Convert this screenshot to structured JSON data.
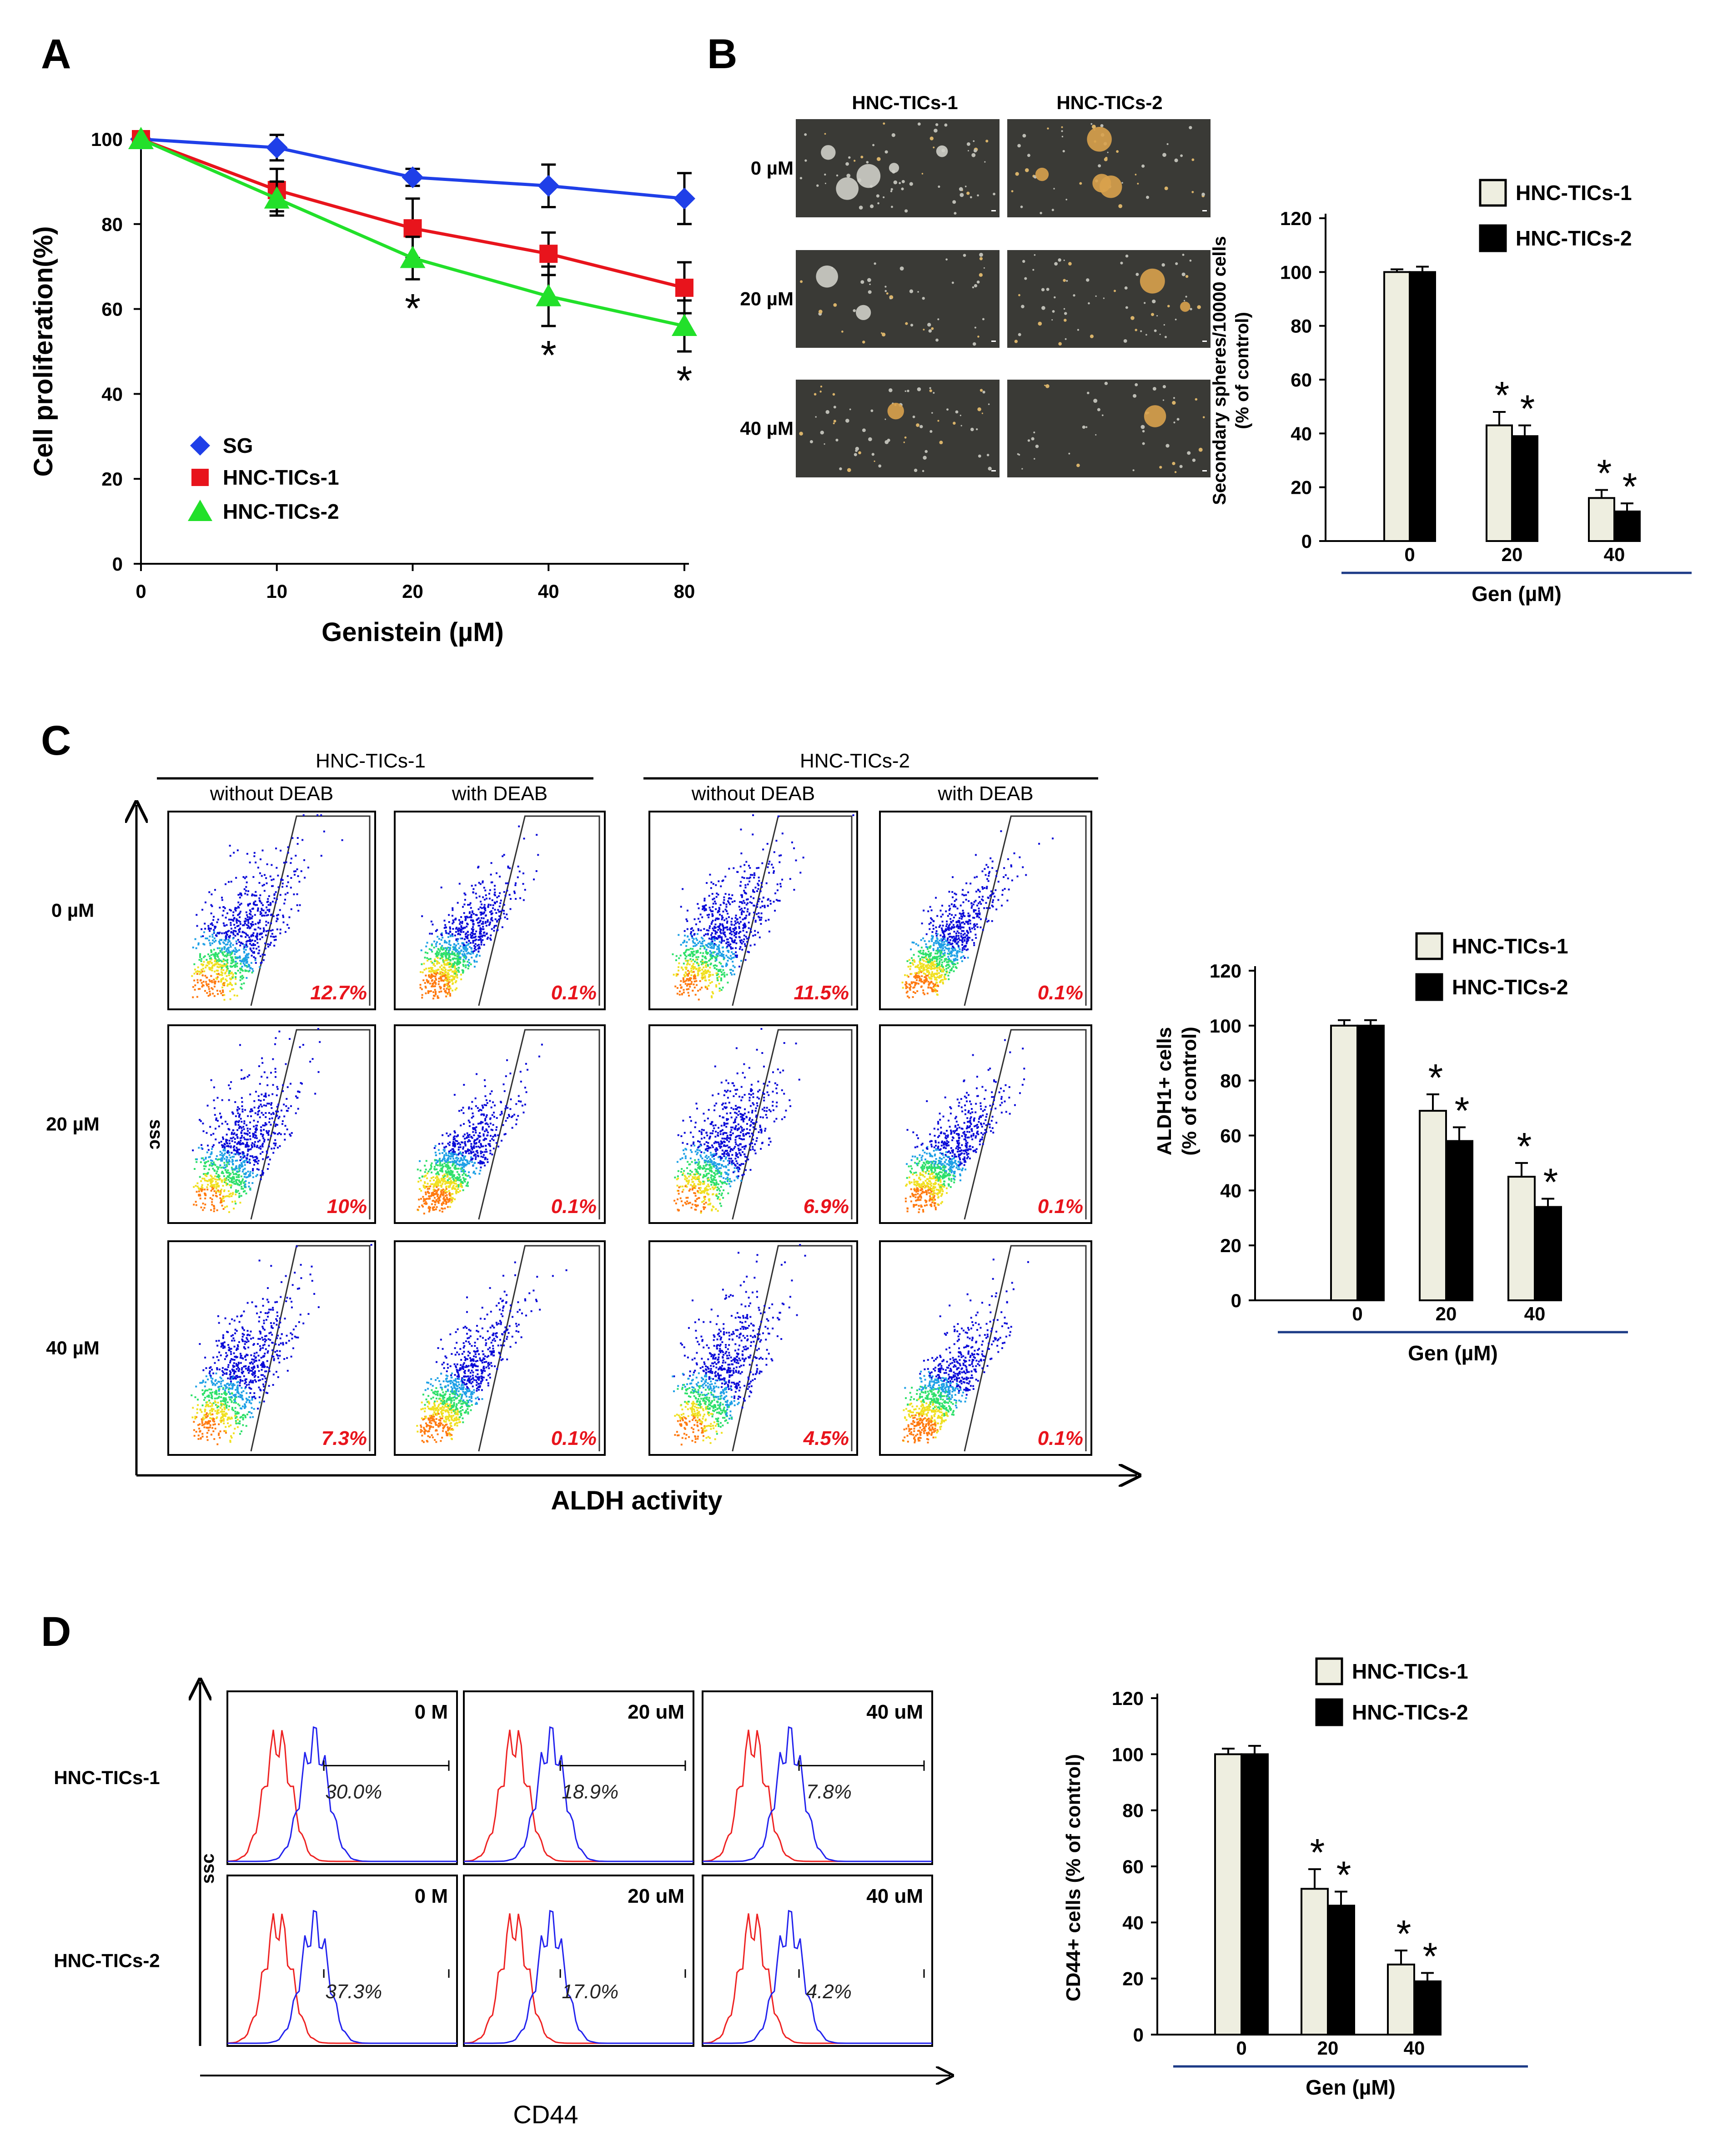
{
  "figure": {
    "panels": {
      "A": {
        "label": "A",
        "xlabel": "Genistein (µM)",
        "ylabel": "Cell proliferation(%)",
        "xticks": [
          "0",
          "10",
          "20",
          "40",
          "80"
        ],
        "yticks": [
          "0",
          "20",
          "40",
          "60",
          "80",
          "100"
        ],
        "legend": [
          "SG",
          "HNC-TICs-1",
          "HNC-TICs-2"
        ],
        "sig_marker": "*"
      },
      "B": {
        "label": "B",
        "col_headers": [
          "HNC-TICs-1",
          "HNC-TICs-2"
        ],
        "row_labels": [
          "0 µM",
          "20 µM",
          "40 µM"
        ],
        "ylabel": "Secondary spheres/10000 cells",
        "ylabel2": "(% of control)",
        "xlabel": "Gen (µM)",
        "xticks": [
          "0",
          "20",
          "40"
        ],
        "yticks": [
          "0",
          "20",
          "40",
          "60",
          "80",
          "100",
          "120"
        ],
        "legend": [
          "HNC-TICs-1",
          "HNC-TICs-2"
        ]
      },
      "C": {
        "label": "C",
        "group_headers": [
          "HNC-TICs-1",
          "HNC-TICs-2"
        ],
        "sub_headers": [
          "without DEAB",
          "with DEAB",
          "without DEAB",
          "with DEAB"
        ],
        "row_labels": [
          "0 µM",
          "20 µM",
          "40 µM"
        ],
        "y_axis_label": "ssc",
        "x_axis_label": "ALDH  activity",
        "percentages": [
          [
            "12.7%",
            "0.1%",
            "11.5%",
            "0.1%"
          ],
          [
            "10%",
            "0.1%",
            "6.9%",
            "0.1%"
          ],
          [
            "7.3%",
            "0.1%",
            "4.5%",
            "0.1%"
          ]
        ],
        "bar_ylabel": "ALDH1+ cells",
        "bar_ylabel2": "(% of control)",
        "bar_xlabel": "Gen (µM)",
        "bar_xticks": [
          "0",
          "20",
          "40"
        ],
        "bar_yticks": [
          "0",
          "20",
          "40",
          "60",
          "80",
          "100",
          "120"
        ],
        "legend": [
          "HNC-TICs-1",
          "HNC-TICs-2"
        ]
      },
      "D": {
        "label": "D",
        "row_labels": [
          "HNC-TICs-1",
          "HNC-TICs-2"
        ],
        "conc_labels": [
          "0 M",
          "20 uM",
          "40 uM"
        ],
        "percentages": [
          [
            "30.0%",
            "18.9%",
            "7.8%"
          ],
          [
            "37.3%",
            "17.0%",
            "4.2%"
          ]
        ],
        "y_axis_label": "ssc",
        "x_axis_label": "CD44",
        "bar_ylabel": "CD44+ cells (% of control)",
        "bar_xlabel": "Gen (µM)",
        "bar_xticks": [
          "0",
          "20",
          "40"
        ],
        "bar_yticks": [
          "0",
          "20",
          "40",
          "60",
          "80",
          "100",
          "120"
        ],
        "legend": [
          "HNC-TICs-1",
          "HNC-TICs-2"
        ]
      }
    },
    "colors": {
      "sg": "#1f3fe8",
      "tic1_line": "#e8141c",
      "tic2_line": "#22e02a",
      "bar_light": "#eeeee0",
      "bar_dark": "#000000",
      "axis_rule": "#1b3a86",
      "pct_red": "#e8141c",
      "hist_red": "#ee2222",
      "hist_blue": "#2222ee"
    }
  },
  "chart_data": [
    {
      "type": "line",
      "title": "A",
      "xlabel": "Genistein (µM)",
      "ylabel": "Cell proliferation(%)",
      "categories": [
        "0",
        "10",
        "20",
        "40",
        "80"
      ],
      "ylim": [
        0,
        100
      ],
      "series": [
        {
          "name": "SG",
          "values": [
            100,
            98,
            91,
            89,
            86
          ],
          "errors": [
            0,
            3,
            2,
            5,
            6
          ]
        },
        {
          "name": "HNC-TICs-1",
          "values": [
            100,
            88,
            79,
            73,
            65
          ],
          "errors": [
            0,
            5,
            7,
            5,
            6
          ]
        },
        {
          "name": "HNC-TICs-2",
          "values": [
            100,
            86,
            72,
            63,
            56
          ],
          "errors": [
            0,
            4,
            5,
            7,
            6
          ]
        }
      ],
      "significance": [
        "",
        "",
        "*",
        "*",
        "*"
      ]
    },
    {
      "type": "bar",
      "title": "B",
      "xlabel": "Gen (µM)",
      "ylabel": "Secondary spheres/10000 cells (% of control)",
      "categories": [
        "0",
        "20",
        "40"
      ],
      "ylim": [
        0,
        120
      ],
      "series": [
        {
          "name": "HNC-TICs-1",
          "values": [
            100,
            43,
            16
          ],
          "errors": [
            1,
            5,
            3
          ],
          "significance": [
            "",
            "*",
            "*"
          ]
        },
        {
          "name": "HNC-TICs-2",
          "values": [
            100,
            39,
            11
          ],
          "errors": [
            2,
            4,
            3
          ],
          "significance": [
            "",
            "*",
            "*"
          ]
        }
      ]
    },
    {
      "type": "bar",
      "title": "C",
      "xlabel": "Gen (µM)",
      "ylabel": "ALDH1+ cells (% of control)",
      "categories": [
        "0",
        "20",
        "40"
      ],
      "ylim": [
        0,
        120
      ],
      "series": [
        {
          "name": "HNC-TICs-1",
          "values": [
            100,
            69,
            45
          ],
          "errors": [
            2,
            6,
            5
          ],
          "significance": [
            "",
            "*",
            "*"
          ]
        },
        {
          "name": "HNC-TICs-2",
          "values": [
            100,
            58,
            34
          ],
          "errors": [
            2,
            5,
            3
          ],
          "significance": [
            "",
            "*",
            "*"
          ]
        }
      ]
    },
    {
      "type": "bar",
      "title": "D",
      "xlabel": "Gen (µM)",
      "ylabel": "CD44+ cells (% of control)",
      "categories": [
        "0",
        "20",
        "40"
      ],
      "ylim": [
        0,
        120
      ],
      "series": [
        {
          "name": "HNC-TICs-1",
          "values": [
            100,
            52,
            25
          ],
          "errors": [
            2,
            7,
            5
          ],
          "significance": [
            "",
            "*",
            "*"
          ]
        },
        {
          "name": "HNC-TICs-2",
          "values": [
            100,
            46,
            19
          ],
          "errors": [
            3,
            5,
            3
          ],
          "significance": [
            "",
            "*",
            "*"
          ]
        }
      ]
    }
  ]
}
